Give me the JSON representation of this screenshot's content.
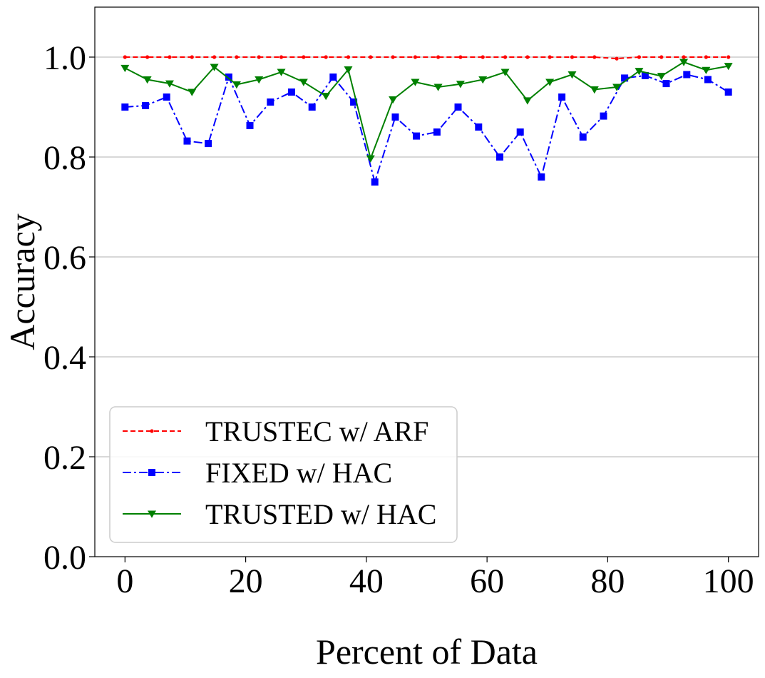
{
  "chart_data": {
    "type": "line",
    "xlabel": "Percent of Data",
    "ylabel": "Accuracy",
    "xlim": [
      -5,
      105
    ],
    "ylim": [
      0.0,
      1.1
    ],
    "x_ticks": [
      0,
      20,
      40,
      60,
      80,
      100
    ],
    "x_tick_labels": [
      "0",
      "20",
      "40",
      "60",
      "80",
      "100"
    ],
    "y_ticks": [
      0.0,
      0.2,
      0.4,
      0.6,
      0.8,
      1.0
    ],
    "y_tick_labels": [
      "0.0",
      "0.2",
      "0.4",
      "0.6",
      "0.8",
      "1.0"
    ],
    "grid": "horizontal",
    "legend_position": "lower-left",
    "series": [
      {
        "name": "TRUSTEC w/ ARF",
        "color": "#ff0000",
        "line_style": "dashed",
        "marker": "dot",
        "x": [
          0,
          3.7,
          7.4,
          11.1,
          14.8,
          18.5,
          22.2,
          25.9,
          29.6,
          33.3,
          37.0,
          40.7,
          44.4,
          48.1,
          51.9,
          55.6,
          59.3,
          63.0,
          66.7,
          70.4,
          74.1,
          77.8,
          81.5,
          85.2,
          88.9,
          92.6,
          96.3,
          100
        ],
        "y": [
          1.0,
          1.0,
          1.0,
          1.0,
          1.0,
          1.0,
          1.0,
          1.0,
          1.0,
          1.0,
          1.0,
          1.0,
          1.0,
          1.0,
          1.0,
          1.0,
          1.0,
          1.0,
          1.0,
          1.0,
          1.0,
          1.0,
          0.997,
          1.0,
          1.0,
          1.0,
          1.0,
          1.0
        ]
      },
      {
        "name": "FIXED w/ HAC",
        "color": "#0000ff",
        "line_style": "dashdot",
        "marker": "square",
        "x": [
          0,
          3.4,
          6.9,
          10.3,
          13.8,
          17.2,
          20.7,
          24.1,
          27.6,
          31.0,
          34.5,
          37.9,
          41.4,
          44.8,
          48.3,
          51.7,
          55.2,
          58.6,
          62.1,
          65.5,
          69.0,
          72.4,
          75.9,
          79.3,
          82.8,
          86.2,
          89.7,
          93.1,
          96.6,
          100
        ],
        "y": [
          0.9,
          0.903,
          0.92,
          0.832,
          0.827,
          0.96,
          0.863,
          0.91,
          0.93,
          0.9,
          0.96,
          0.91,
          0.75,
          0.88,
          0.842,
          0.85,
          0.9,
          0.86,
          0.8,
          0.85,
          0.76,
          0.92,
          0.84,
          0.882,
          0.958,
          0.963,
          0.947,
          0.965,
          0.955,
          0.93
        ]
      },
      {
        "name": "TRUSTED w/ HAC",
        "color": "#008000",
        "line_style": "solid",
        "marker": "triangle-down",
        "x": [
          0,
          3.7,
          7.4,
          11.1,
          14.8,
          18.5,
          22.2,
          25.9,
          29.6,
          33.3,
          37.0,
          40.7,
          44.4,
          48.1,
          51.9,
          55.6,
          59.3,
          63.0,
          66.7,
          70.4,
          74.1,
          77.8,
          81.5,
          85.2,
          88.9,
          92.6,
          96.3,
          100
        ],
        "y": [
          0.978,
          0.955,
          0.947,
          0.93,
          0.98,
          0.945,
          0.955,
          0.97,
          0.95,
          0.922,
          0.975,
          0.797,
          0.915,
          0.95,
          0.94,
          0.946,
          0.955,
          0.97,
          0.913,
          0.95,
          0.965,
          0.935,
          0.94,
          0.972,
          0.962,
          0.99,
          0.974,
          0.982
        ]
      }
    ]
  }
}
